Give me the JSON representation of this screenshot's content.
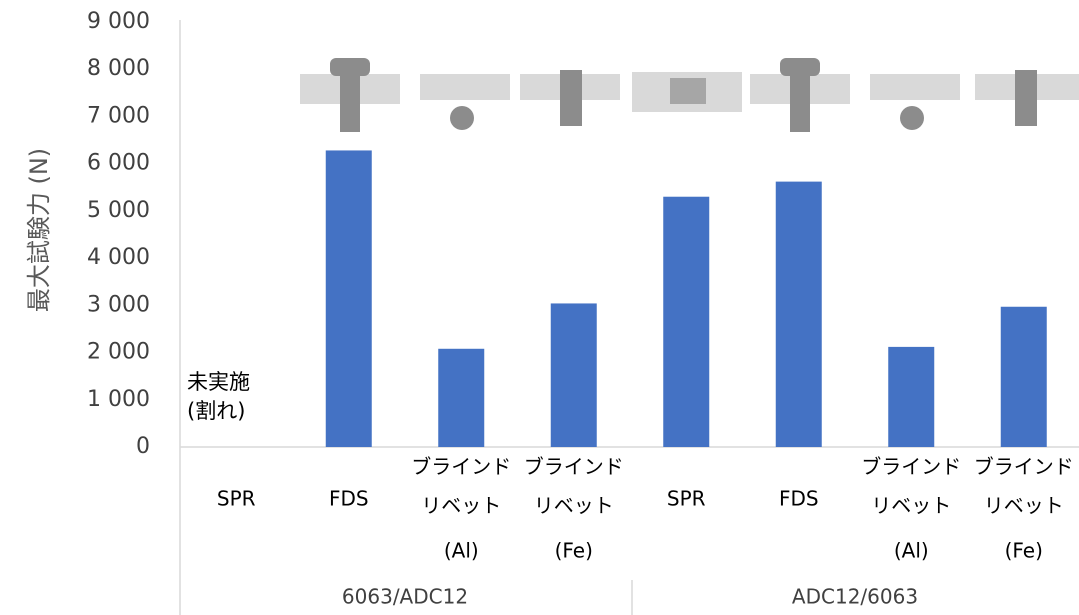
{
  "chart_data": {
    "type": "bar",
    "y_label": "最大試験力 (N)",
    "categories": [
      [
        "SPR"
      ],
      [
        "FDS"
      ],
      [
        "ブラインド",
        "リベット",
        "(Al)"
      ],
      [
        "ブラインド",
        "リベット",
        "(Fe)"
      ],
      [
        "SPR"
      ],
      [
        "FDS"
      ],
      [
        "ブラインド",
        "リベット",
        "(Al)"
      ],
      [
        "ブラインド",
        "リベット",
        "(Fe)"
      ]
    ],
    "groups": [
      "6063/ADC12",
      "ADC12/6063"
    ],
    "values": [
      null,
      6280,
      2080,
      3040,
      5300,
      5620,
      2120,
      2970
    ],
    "color": "#4472c4",
    "annotation": [
      "未実施",
      "(割れ)"
    ],
    "ylim": [
      0,
      9000
    ],
    "yticks": [
      0,
      {
        "value": 1000,
        "label": "1 000"
      },
      {
        "value": 2000,
        "label": "2 000"
      },
      {
        "value": 3000,
        "label": "3 000"
      },
      {
        "value": 4000,
        "label": "4 000"
      },
      {
        "value": 5000,
        "label": "5 000"
      },
      {
        "value": 6000,
        "label": "6 000"
      },
      {
        "value": 7000,
        "label": "7 000"
      },
      {
        "value": 8000,
        "label": "8 000"
      },
      {
        "value": 9000,
        "label": "9 000"
      }
    ],
    "grid": false
  }
}
